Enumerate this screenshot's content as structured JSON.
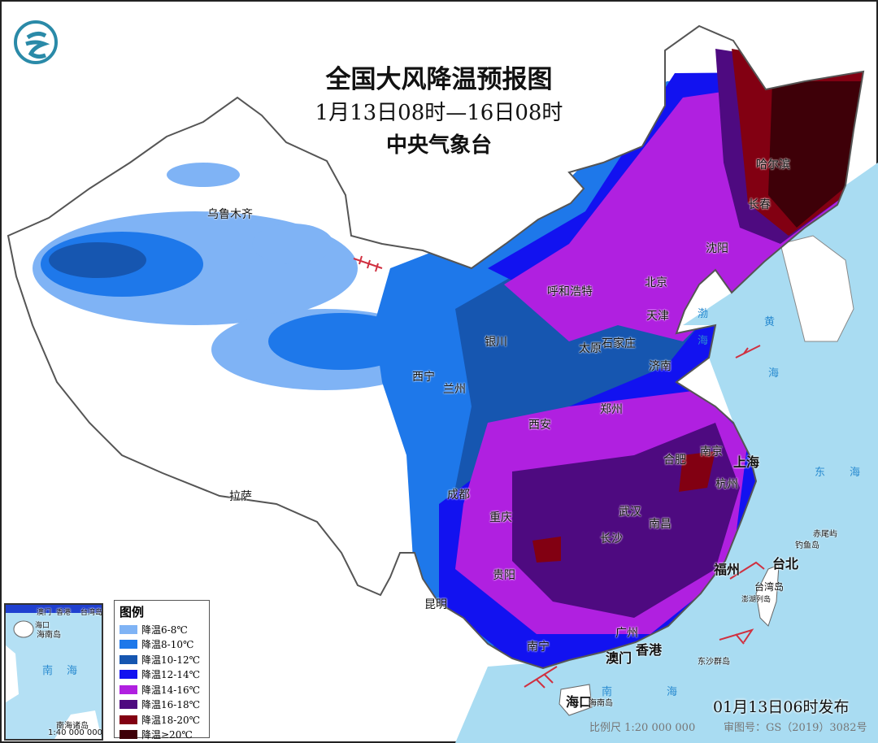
{
  "title": "全国大风降温预报图",
  "period": "1月13日08时—16日08时",
  "issuer": "中央气象台",
  "issue_time": "01月13日06时发布",
  "scale": "比例尺 1:20 000 000",
  "review_number": "审图号：GS（2019）3082号",
  "logo": {
    "icon": "cma-dragon-logo",
    "color": "#2a8aa8"
  },
  "legend": {
    "title": "图例",
    "items": [
      {
        "label": "降温6-8℃",
        "color": "#7fb3f5"
      },
      {
        "label": "降温8-10℃",
        "color": "#1e78ea"
      },
      {
        "label": "降温10-12℃",
        "color": "#1656b0"
      },
      {
        "label": "降温12-14℃",
        "color": "#1212f0"
      },
      {
        "label": "降温14-16℃",
        "color": "#b020e0"
      },
      {
        "label": "降温16-18℃",
        "color": "#4e0a80"
      },
      {
        "label": "降温18-20℃",
        "color": "#820012"
      },
      {
        "label": "降温≥20℃",
        "color": "#3e0008"
      }
    ]
  },
  "cities": [
    "乌鲁木齐",
    "拉萨",
    "西宁",
    "兰州",
    "银川",
    "呼和浩特",
    "北京",
    "天津",
    "石家庄",
    "太原",
    "济南",
    "郑州",
    "西安",
    "成都",
    "重庆",
    "昆明",
    "贵阳",
    "长沙",
    "武汉",
    "南昌",
    "合肥",
    "南京",
    "上海",
    "杭州",
    "福州",
    "台北",
    "南宁",
    "广州",
    "澳门",
    "香港",
    "海口",
    "沈阳",
    "长春",
    "哈尔滨"
  ],
  "islands": [
    "台湾岛",
    "海南岛",
    "钓鱼岛",
    "赤尾屿",
    "澎湖列岛",
    "东沙群岛"
  ],
  "seas": [
    "渤",
    "海",
    "黄",
    "海",
    "东",
    "海",
    "南",
    "海"
  ],
  "inset": {
    "labels": [
      "澳门",
      "香港",
      "台湾岛",
      "海口",
      "海南岛",
      "南",
      "海",
      "南海诸岛"
    ],
    "scale": "1:40 000 000"
  },
  "colors": {
    "sea": "#a9dcf2",
    "border": "#555555",
    "wind_barb": "#d03040"
  }
}
